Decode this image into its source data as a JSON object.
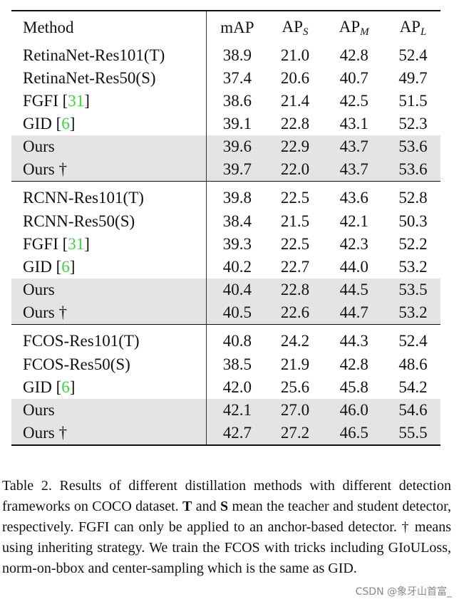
{
  "table": {
    "headers": {
      "method": "Method",
      "map": "mAP",
      "aps_base": "AP",
      "aps_sub": "S",
      "apm_base": "AP",
      "apm_sub": "M",
      "apl_base": "AP",
      "apl_sub": "L"
    },
    "groups": [
      {
        "rows": [
          {
            "method": "RetinaNet-Res101(T)",
            "ref": "",
            "suffix": "",
            "map": "38.9",
            "aps": "21.0",
            "apm": "42.8",
            "apl": "52.4",
            "shaded": false
          },
          {
            "method": "RetinaNet-Res50(S)",
            "ref": "",
            "suffix": "",
            "map": "37.4",
            "aps": "20.6",
            "apm": "40.7",
            "apl": "49.7",
            "shaded": false
          },
          {
            "method": "FGFI [",
            "ref": "31",
            "suffix": "]",
            "map": "38.6",
            "aps": "21.4",
            "apm": "42.5",
            "apl": "51.5",
            "shaded": false
          },
          {
            "method": "GID [",
            "ref": "6",
            "suffix": "]",
            "map": "39.1",
            "aps": "22.8",
            "apm": "43.1",
            "apl": "52.3",
            "shaded": false
          },
          {
            "method": "Ours",
            "ref": "",
            "suffix": "",
            "map": "39.6",
            "aps": "22.9",
            "apm": "43.7",
            "apl": "53.6",
            "shaded": true
          },
          {
            "method": "Ours †",
            "ref": "",
            "suffix": "",
            "map": "39.7",
            "aps": "22.0",
            "apm": "43.7",
            "apl": "53.6",
            "shaded": true
          }
        ]
      },
      {
        "rows": [
          {
            "method": "RCNN-Res101(T)",
            "ref": "",
            "suffix": "",
            "map": "39.8",
            "aps": "22.5",
            "apm": "43.6",
            "apl": "52.8",
            "shaded": false
          },
          {
            "method": "RCNN-Res50(S)",
            "ref": "",
            "suffix": "",
            "map": "38.4",
            "aps": "21.5",
            "apm": "42.1",
            "apl": "50.3",
            "shaded": false
          },
          {
            "method": "FGFI [",
            "ref": "31",
            "suffix": "]",
            "map": "39.3",
            "aps": "22.5",
            "apm": "42.3",
            "apl": "52.2",
            "shaded": false
          },
          {
            "method": "GID [",
            "ref": "6",
            "suffix": "]",
            "map": "40.2",
            "aps": "22.7",
            "apm": "44.0",
            "apl": "53.2",
            "shaded": false
          },
          {
            "method": "Ours",
            "ref": "",
            "suffix": "",
            "map": "40.4",
            "aps": "22.8",
            "apm": "44.5",
            "apl": "53.5",
            "shaded": true
          },
          {
            "method": "Ours †",
            "ref": "",
            "suffix": "",
            "map": "40.5",
            "aps": "22.6",
            "apm": "44.7",
            "apl": "53.2",
            "shaded": true
          }
        ]
      },
      {
        "rows": [
          {
            "method": "FCOS-Res101(T)",
            "ref": "",
            "suffix": "",
            "map": "40.8",
            "aps": "24.2",
            "apm": "44.3",
            "apl": "52.4",
            "shaded": false
          },
          {
            "method": "FCOS-Res50(S)",
            "ref": "",
            "suffix": "",
            "map": "38.5",
            "aps": "21.9",
            "apm": "42.8",
            "apl": "48.6",
            "shaded": false
          },
          {
            "method": "GID [",
            "ref": "6",
            "suffix": "]",
            "map": "42.0",
            "aps": "25.6",
            "apm": "45.8",
            "apl": "54.2",
            "shaded": false
          },
          {
            "method": "Ours",
            "ref": "",
            "suffix": "",
            "map": "42.1",
            "aps": "27.0",
            "apm": "46.0",
            "apl": "54.6",
            "shaded": true
          },
          {
            "method": "Ours †",
            "ref": "",
            "suffix": "",
            "map": "42.7",
            "aps": "27.2",
            "apm": "46.5",
            "apl": "55.5",
            "shaded": true
          }
        ]
      }
    ]
  },
  "caption": {
    "part1": "Table 2.  Results of different distillation methods with different detection frameworks on COCO dataset. ",
    "bold_t": "T",
    "part2": " and ",
    "bold_s": "S",
    "part3": " mean the teacher and student detector, respectively.  FGFI can only be applied to an anchor-based detector.  † means using inheriting strategy.  We train the FCOS with tricks including GIoULoss, norm-on-bbox and center-sampling which is the same as GID."
  },
  "watermark": "CSDN @象牙山首富_",
  "colors": {
    "shade": "#e4e4e4",
    "reference": "#3cd43c"
  }
}
